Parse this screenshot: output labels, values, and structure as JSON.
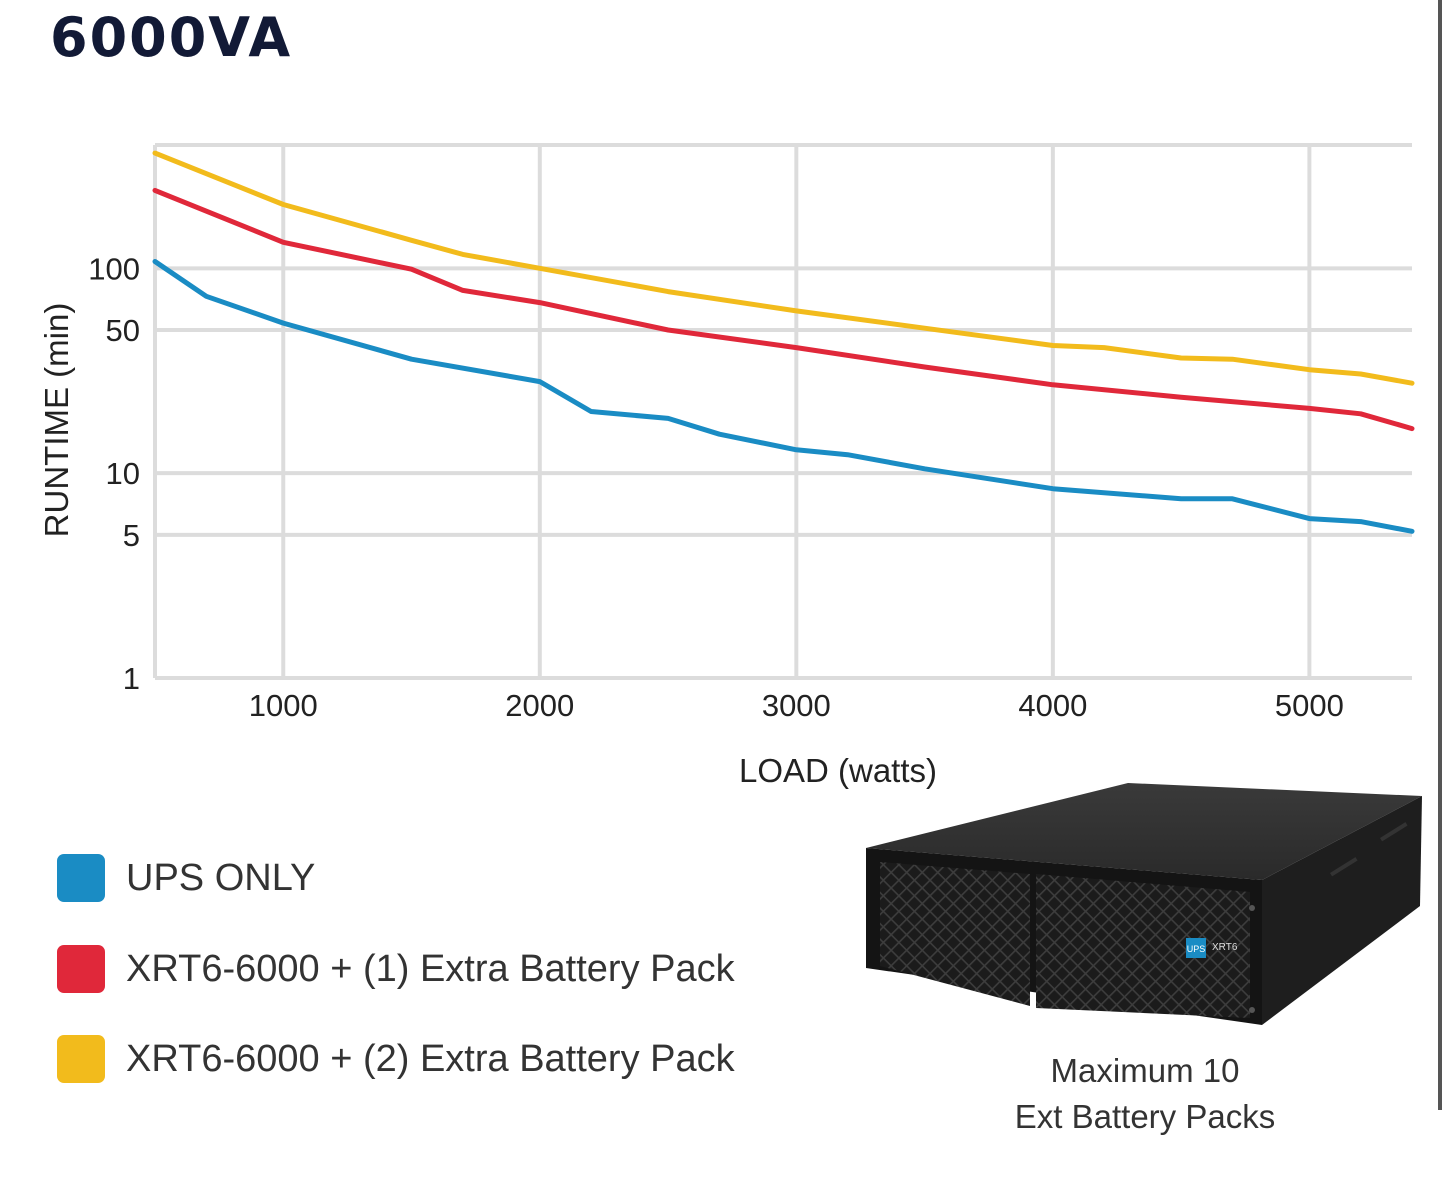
{
  "title": "6000VA",
  "legend": [
    {
      "label": "UPS ONLY",
      "color": "#1a8cc4"
    },
    {
      "label": "XRT6-6000 + (1) Extra Battery Pack",
      "color": "#e0283a"
    },
    {
      "label": "XRT6-6000 + (2) Extra Battery Pack",
      "color": "#f2bb1c"
    }
  ],
  "product": {
    "badge_text": "UPS",
    "model_text": "XRT6",
    "caption_line1": "Maximum 10",
    "caption_line2": "Ext Battery Packs"
  },
  "chart_data": {
    "type": "line",
    "xlabel": "LOAD (watts)",
    "ylabel": "RUNTIME (min)",
    "xlim": [
      500,
      5400
    ],
    "ylim": [
      1,
      400
    ],
    "yscale": "log",
    "grid": true,
    "x_ticks": [
      1000,
      2000,
      3000,
      4000,
      5000
    ],
    "x_tick_labels": [
      "1000",
      "2000",
      "3000",
      "4000",
      "5000"
    ],
    "y_ticks": [
      1,
      5,
      10,
      50,
      100
    ],
    "y_tick_labels": [
      "1",
      "5",
      "10",
      "50",
      "100"
    ],
    "series": [
      {
        "name": "UPS ONLY",
        "color": "#1a8cc4",
        "x": [
          500,
          700,
          1000,
          1500,
          2000,
          2200,
          2500,
          2700,
          3000,
          3200,
          3500,
          4000,
          4500,
          4700,
          5000,
          5200,
          5400
        ],
        "y": [
          108,
          73,
          54,
          36,
          28,
          20,
          18.5,
          15.5,
          13,
          12.3,
          10.5,
          8.4,
          7.5,
          7.5,
          6,
          5.8,
          5.2
        ]
      },
      {
        "name": "XRT6-6000 + (1) Extra Battery Pack",
        "color": "#e0283a",
        "x": [
          500,
          1000,
          1500,
          1700,
          2000,
          2500,
          3000,
          3500,
          4000,
          4500,
          5000,
          5200,
          5400
        ],
        "y": [
          240,
          134,
          99,
          78,
          68,
          50,
          41,
          33,
          27,
          23.5,
          20.7,
          19.5,
          16.5
        ]
      },
      {
        "name": "XRT6-6000 + (2) Extra Battery Pack",
        "color": "#f2bb1c",
        "x": [
          500,
          1000,
          1500,
          1700,
          2000,
          2500,
          3000,
          3500,
          4000,
          4200,
          4500,
          4700,
          5000,
          5200,
          5400
        ],
        "y": [
          365,
          205,
          137,
          117,
          100,
          77,
          62,
          51,
          42,
          41,
          36.5,
          36,
          32,
          30.5,
          27.5
        ]
      }
    ]
  }
}
